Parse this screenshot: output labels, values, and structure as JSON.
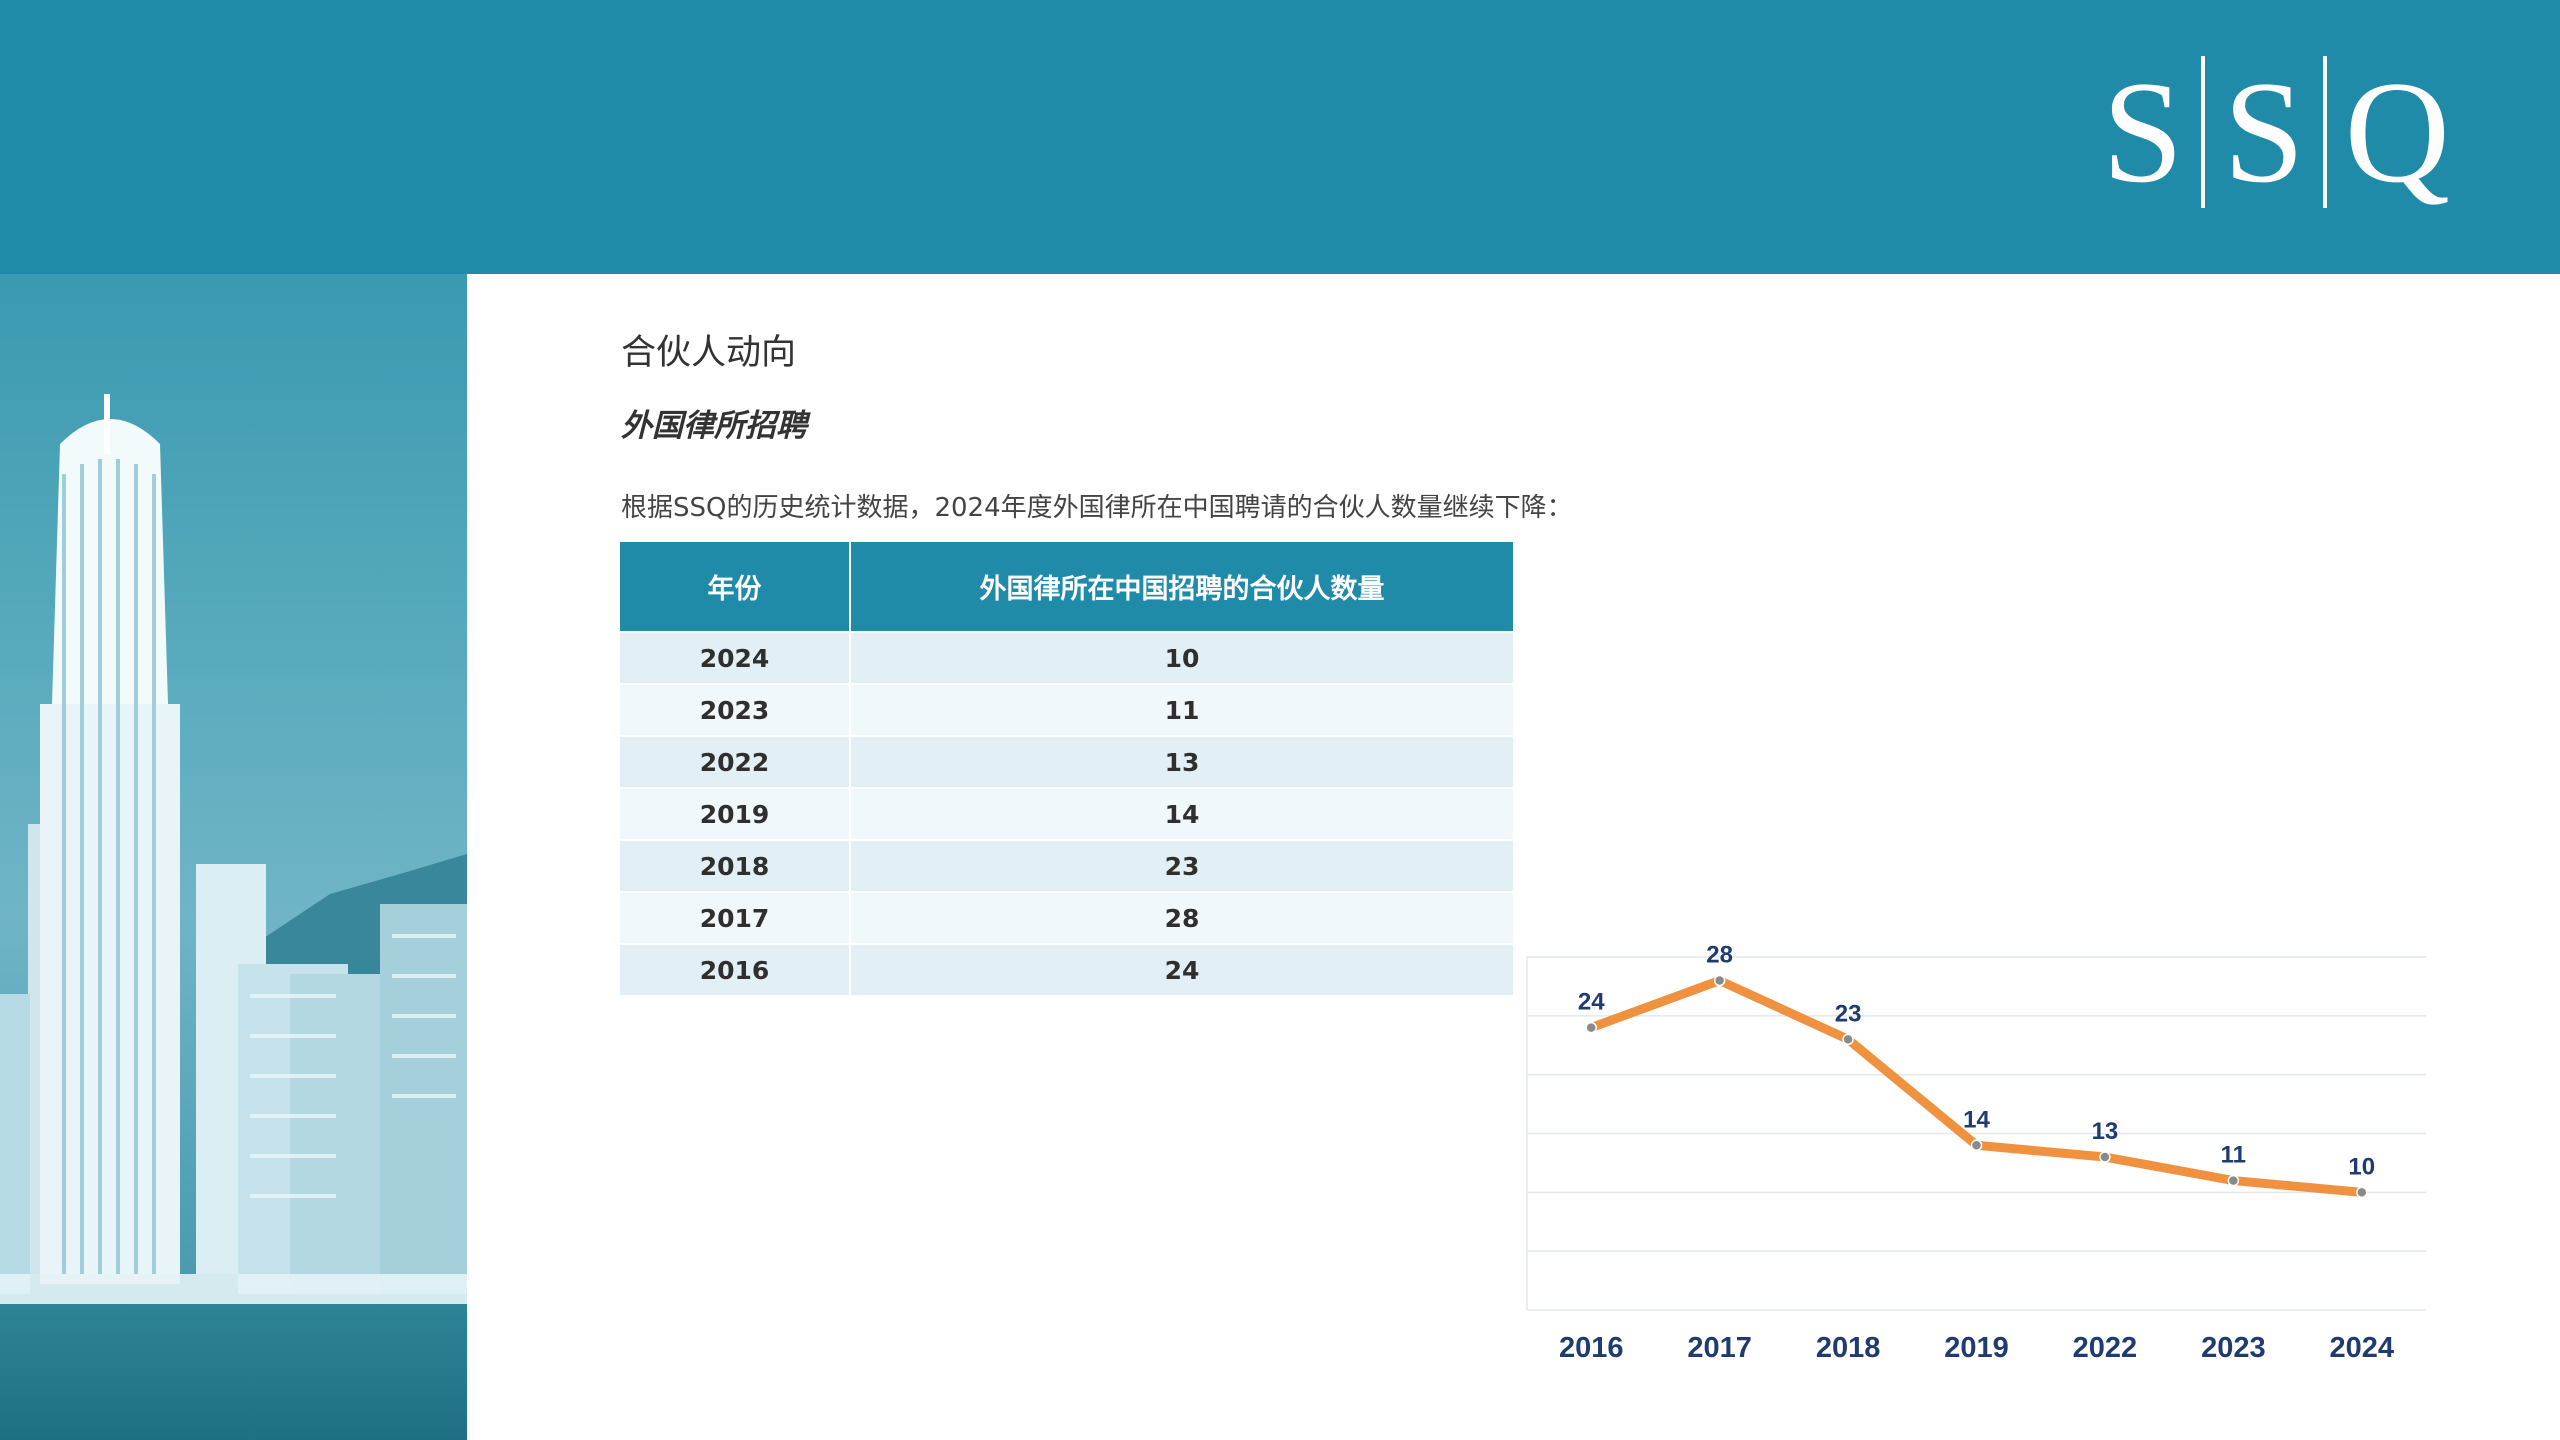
{
  "brand": {
    "logo_letters": [
      "S",
      "S",
      "Q"
    ],
    "banner_color": "#1f8ba8"
  },
  "heading": "合伙人动向",
  "subheading": "外国律所招聘",
  "intro": "根据SSQ的历史统计数据，2024年度外国律所在中国聘请的合伙人数量继续下降：",
  "table": {
    "headers": [
      "年份",
      "外国律所在中国招聘的合伙人数量"
    ],
    "rows": [
      {
        "year": "2024",
        "count": "10"
      },
      {
        "year": "2023",
        "count": "11"
      },
      {
        "year": "2022",
        "count": "13"
      },
      {
        "year": "2019",
        "count": "14"
      },
      {
        "year": "2018",
        "count": "23"
      },
      {
        "year": "2017",
        "count": "28"
      },
      {
        "year": "2016",
        "count": "24"
      }
    ]
  },
  "chart_data": {
    "type": "line",
    "title": "",
    "xlabel": "",
    "ylabel": "",
    "categories": [
      "2016",
      "2017",
      "2018",
      "2019",
      "2022",
      "2023",
      "2024"
    ],
    "series": [
      {
        "values": [
          24,
          28,
          23,
          14,
          13,
          11,
          10
        ],
        "color": "#f0913f"
      }
    ],
    "ylim": [
      0,
      30
    ],
    "grid": true,
    "y_axis_labels_shown": false,
    "data_labels": true,
    "label_color": "#1f3b70",
    "marker_color": "#8a8a8a"
  }
}
